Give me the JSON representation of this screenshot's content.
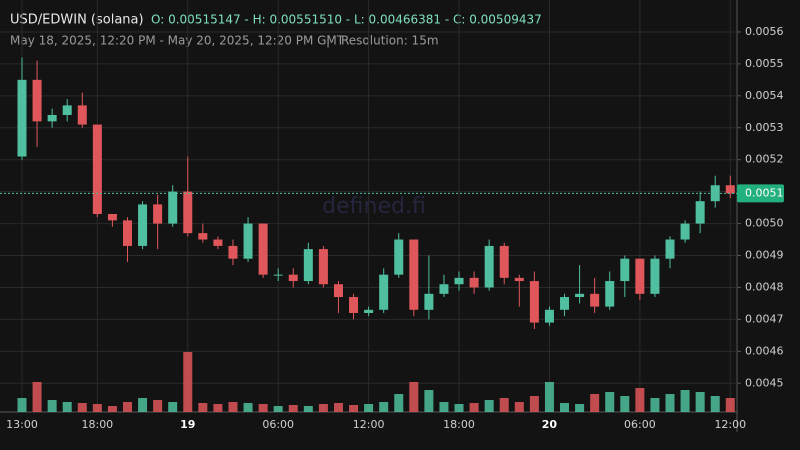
{
  "chart_data": {
    "type": "candlestick",
    "title": "USD/EDWIN (solana)",
    "ohlc_text": "O: 0.00515147 - H: 0.00551510 - L: 0.00466381 - C: 0.00509437",
    "date_range": "May 18, 2025, 12:20 PM - May 20, 2025, 12:20 PM GMT",
    "separator": "|",
    "resolution": "Resolution: 15m",
    "watermark": "defined.fi",
    "up_color": "#4fbf9f",
    "down_color": "#e0575b",
    "categories": [
      "13:00",
      null,
      null,
      null,
      null,
      "18:00",
      null,
      null,
      null,
      null,
      null,
      "19",
      null,
      null,
      null,
      null,
      null,
      "06:00",
      null,
      null,
      null,
      null,
      null,
      "12:00",
      null,
      null,
      null,
      null,
      null,
      "18:00",
      null,
      null,
      null,
      null,
      null,
      "20",
      null,
      null,
      null,
      null,
      null,
      "06:00",
      null,
      null,
      null,
      null,
      null,
      "12:00"
    ],
    "open": [
      0.00521,
      0.00545,
      0.00532,
      0.00534,
      0.00537,
      0.00531,
      0.00503,
      0.00501,
      0.00493,
      0.00506,
      0.005,
      0.0051,
      0.00497,
      0.00495,
      0.00493,
      0.00489,
      0.005,
      0.00484,
      0.00484,
      0.00482,
      0.00492,
      0.00481,
      0.00477,
      0.00472,
      0.00473,
      0.00484,
      0.00495,
      0.00473,
      0.00478,
      0.00481,
      0.00483,
      0.0048,
      0.00493,
      0.00483,
      0.00482,
      0.00469,
      0.00473,
      0.00477,
      0.00478,
      0.00474,
      0.00482,
      0.00489,
      0.00478,
      0.00489,
      0.00495,
      0.005,
      0.00507,
      0.00512
    ],
    "high": [
      0.00552,
      0.00551,
      0.00536,
      0.00539,
      0.00541,
      0.00531,
      0.00503,
      0.00502,
      0.00507,
      0.00509,
      0.00512,
      0.00521,
      0.005,
      0.00496,
      0.00495,
      0.00502,
      0.005,
      0.00486,
      0.00486,
      0.00494,
      0.00493,
      0.00482,
      0.00478,
      0.00474,
      0.00486,
      0.00497,
      0.00495,
      0.0049,
      0.00484,
      0.00485,
      0.00485,
      0.00495,
      0.00494,
      0.00484,
      0.00485,
      0.00474,
      0.00478,
      0.00487,
      0.00483,
      0.00485,
      0.0049,
      0.00489,
      0.0049,
      0.00496,
      0.00501,
      0.0051,
      0.00515,
      0.00515
    ],
    "low": [
      0.0052,
      0.00524,
      0.0053,
      0.00532,
      0.0053,
      0.00502,
      0.00499,
      0.00488,
      0.00492,
      0.00492,
      0.00499,
      0.00496,
      0.00494,
      0.00492,
      0.00487,
      0.00488,
      0.00483,
      0.00482,
      0.0048,
      0.00481,
      0.0048,
      0.00472,
      0.0047,
      0.00471,
      0.00472,
      0.00483,
      0.00471,
      0.0047,
      0.00477,
      0.00479,
      0.00478,
      0.00479,
      0.00481,
      0.00474,
      0.00467,
      0.00468,
      0.00471,
      0.00475,
      0.00472,
      0.00473,
      0.00477,
      0.00476,
      0.00477,
      0.00486,
      0.00494,
      0.00497,
      0.00505,
      0.00508
    ],
    "close": [
      0.00545,
      0.00532,
      0.00534,
      0.00537,
      0.00531,
      0.00503,
      0.00501,
      0.00493,
      0.00506,
      0.005,
      0.0051,
      0.00497,
      0.00495,
      0.00493,
      0.00489,
      0.005,
      0.00484,
      0.00484,
      0.00482,
      0.00492,
      0.00481,
      0.00477,
      0.00472,
      0.00473,
      0.00484,
      0.00495,
      0.00473,
      0.00478,
      0.00481,
      0.00483,
      0.0048,
      0.00493,
      0.00483,
      0.00482,
      0.00469,
      0.00473,
      0.00477,
      0.00478,
      0.00474,
      0.00482,
      0.00489,
      0.00478,
      0.00489,
      0.00495,
      0.005,
      0.00507,
      0.00512,
      0.00509437
    ],
    "volume": [
      14,
      30,
      12,
      10,
      9,
      8,
      6,
      10,
      14,
      12,
      10,
      60,
      9,
      8,
      10,
      9,
      8,
      6,
      7,
      6,
      8,
      9,
      7,
      8,
      10,
      18,
      30,
      22,
      10,
      8,
      9,
      12,
      14,
      10,
      16,
      30,
      9,
      8,
      18,
      20,
      16,
      24,
      14,
      18,
      22,
      20,
      16,
      14
    ],
    "price_line": {
      "value": 0.00509437,
      "label": "0.0051"
    },
    "ylim": [
      0.00441,
      0.0057
    ],
    "yticks": [
      0.0045,
      0.0046,
      0.0047,
      0.0048,
      0.0049,
      {
        "value": 0.005,
        "label": "0.0050"
      },
      0.0051,
      0.0052,
      0.0053,
      0.0054,
      0.0055,
      0.0056
    ],
    "grid": true
  }
}
